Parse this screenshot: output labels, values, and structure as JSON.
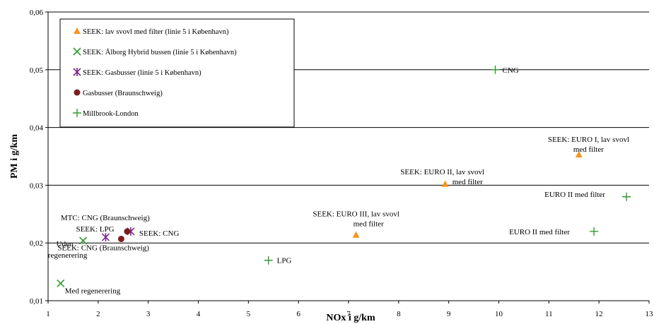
{
  "chart_data": {
    "type": "scatter",
    "title": "",
    "xlabel": "NOx i g/km",
    "ylabel": "PM i g/km",
    "xlim": [
      1,
      13
    ],
    "ylim": [
      0.01,
      0.06
    ],
    "x_ticks": [
      "1",
      "2",
      "3",
      "4",
      "5",
      "6",
      "7",
      "8",
      "9",
      "10",
      "11",
      "12",
      "13"
    ],
    "y_ticks": [
      "0,01",
      "0,02",
      "0,03",
      "0,04",
      "0,05",
      "0,06"
    ],
    "grid": "horizontal",
    "legend_position": "top-left",
    "series": [
      {
        "name": "SEEK: lav svovl med filter (linie 5 i København)",
        "marker": "triangle",
        "color": "#F7941D",
        "points": [
          {
            "x": 11.6,
            "y": 0.0353,
            "label": [
              "SEEK: EURO I, lav svovl",
              "med filter"
            ]
          },
          {
            "x": 8.93,
            "y": 0.0302,
            "label": [
              "SEEK: EURO II, lav svovl",
              "med filter"
            ]
          },
          {
            "x": 7.15,
            "y": 0.0214,
            "label": [
              "SEEK: EURO III, lav svovl",
              "med filter"
            ]
          }
        ]
      },
      {
        "name": "SEEK: Ålborg Hybrid bussen (linie 5 i København)",
        "marker": "x",
        "color": "#2E9B2E",
        "points": [
          {
            "x": 1.7,
            "y": 0.0204,
            "label": [
              "Uden",
              "regenerering"
            ]
          },
          {
            "x": 1.25,
            "y": 0.013,
            "label": [
              "Med regenerering"
            ]
          }
        ]
      },
      {
        "name": "SEEK: Gasbusser (linie 5 i København)",
        "marker": "star",
        "color": "#7B2A8C",
        "points": [
          {
            "x": 2.15,
            "y": 0.021,
            "label": [
              "SEEK: LPG"
            ]
          },
          {
            "x": 2.65,
            "y": 0.022,
            "label": [
              "SEEK: CNG"
            ]
          }
        ]
      },
      {
        "name": "Gasbusser (Braunschweig)",
        "marker": "circle",
        "color": "#7A1F1F",
        "points": [
          {
            "x": 2.58,
            "y": 0.022,
            "label": [
              "MTC: CNG (Braunschweig)"
            ]
          },
          {
            "x": 2.46,
            "y": 0.0207,
            "label": [
              "SEEK: CNG (Braunschweig)"
            ]
          }
        ]
      },
      {
        "name": "Millbrook-London",
        "marker": "plus",
        "color": "#2E9B2E",
        "points": [
          {
            "x": 9.93,
            "y": 0.05,
            "label": [
              "CNG"
            ]
          },
          {
            "x": 12.55,
            "y": 0.028,
            "label": [
              "EURO II med filter"
            ]
          },
          {
            "x": 11.9,
            "y": 0.022,
            "label": [
              "EURO II med filter"
            ]
          },
          {
            "x": 5.4,
            "y": 0.017,
            "label": [
              "LPG"
            ]
          }
        ]
      }
    ]
  }
}
